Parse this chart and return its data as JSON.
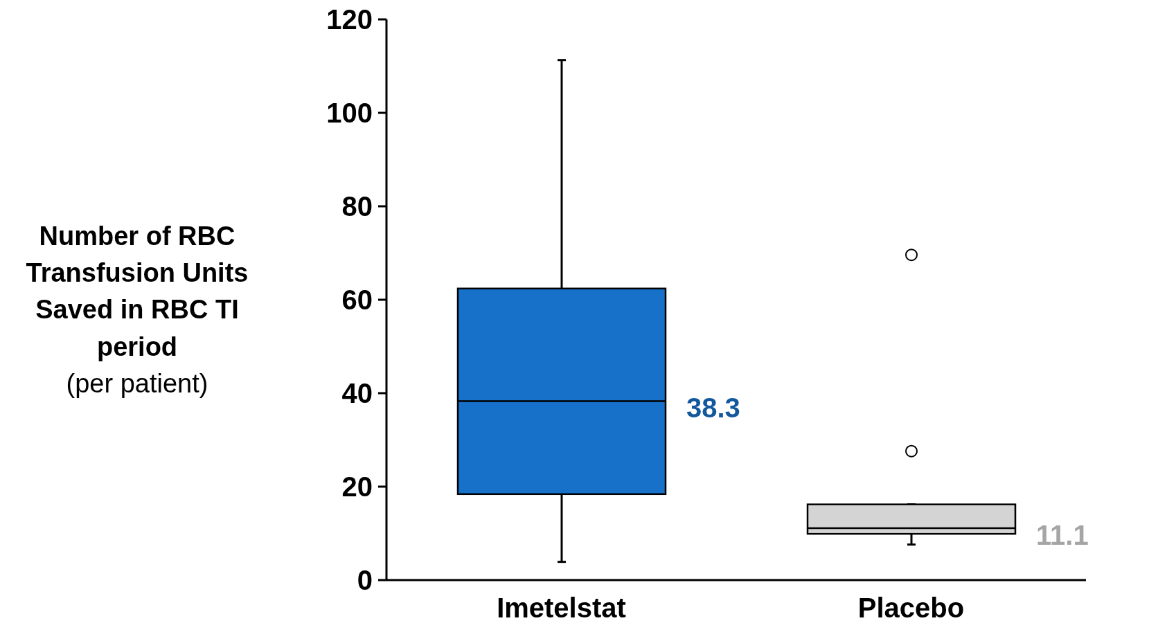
{
  "chart_data": {
    "type": "box",
    "ylabel": "Number of RBC Transfusion Units Saved in RBC TI period\n(per patient)",
    "categories": [
      "Imetelstat",
      "Placebo"
    ],
    "boxes": [
      {
        "low": 3.9,
        "q1": 18.4,
        "median": 38.3,
        "q3": 62.4,
        "high": 111.3
      },
      {
        "low": 7.6,
        "q1": 9.9,
        "median": 11.1,
        "q3": 16.2,
        "high": 16.2,
        "outliers": [
          27.6,
          69.6
        ]
      }
    ],
    "colors": [
      "#1771c9",
      "#d4d4d4"
    ],
    "value_labels": [
      "38.3",
      "11.1"
    ],
    "ylim": [
      0,
      120
    ],
    "yticks": [
      0,
      20,
      40,
      60,
      80,
      100,
      120
    ]
  }
}
